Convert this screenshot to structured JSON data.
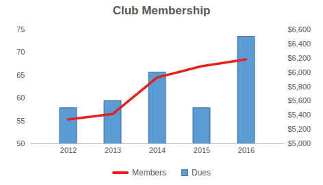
{
  "chart_data": {
    "type": "bar",
    "title": "Club Membership",
    "categories": [
      "2012",
      "2013",
      "2014",
      "2015",
      "2016"
    ],
    "series": [
      {
        "name": "Members",
        "type": "line",
        "color": "#e8201a",
        "values": [
          55.3,
          56.5,
          64.5,
          67,
          68.5
        ]
      },
      {
        "name": "Dues",
        "type": "bar",
        "color": "#5b9bd5",
        "axis": "y2",
        "values": [
          5500,
          5600,
          6000,
          5500,
          6500
        ]
      }
    ],
    "ylim": [
      50,
      75
    ],
    "yticks": [
      50,
      55,
      60,
      65,
      70,
      75
    ],
    "y2lim": [
      5000,
      6600
    ],
    "y2ticks": [
      {
        "value": 5000,
        "label": "$5,000"
      },
      {
        "value": 5200,
        "label": "$5,200"
      },
      {
        "value": 5400,
        "label": "$5,400"
      },
      {
        "value": 5600,
        "label": "$5,600"
      },
      {
        "value": 5800,
        "label": "$5,800"
      },
      {
        "value": 6000,
        "label": "$6,000"
      },
      {
        "value": 6200,
        "label": "$6,200"
      },
      {
        "value": 6400,
        "label": "$6,400"
      },
      {
        "value": 6600,
        "label": "$6,600"
      }
    ],
    "legend": "bottom"
  }
}
